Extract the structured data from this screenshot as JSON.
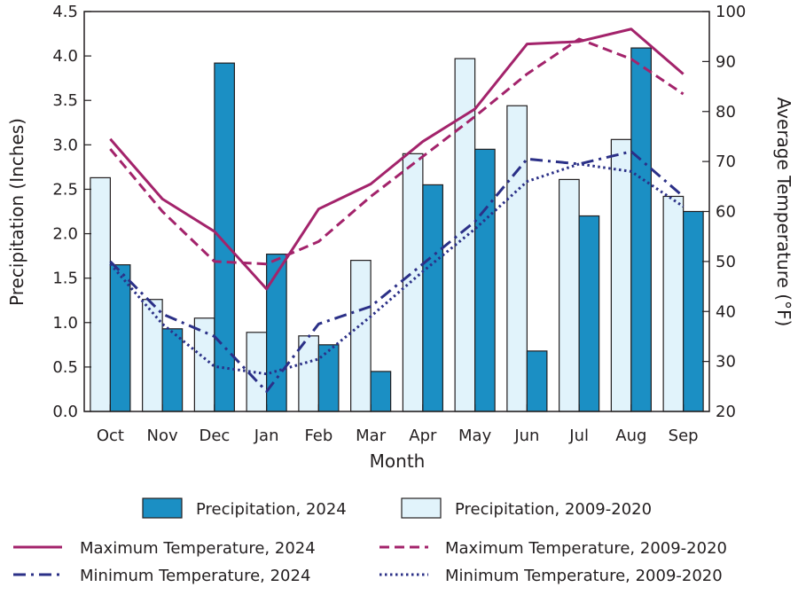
{
  "chart_data": {
    "type": "bar",
    "title": "",
    "xlabel": "Month",
    "ylabel": "Precipitation (Inches)",
    "y2label": "Average Temperature (°F)",
    "ylim": [
      0,
      4.5
    ],
    "y2lim": [
      20,
      100
    ],
    "yticks": [
      "0.0",
      "0.5",
      "1.0",
      "1.5",
      "2.0",
      "2.5",
      "3.0",
      "3.5",
      "4.0",
      "4.5"
    ],
    "y2ticks": [
      "20",
      "30",
      "40",
      "50",
      "60",
      "70",
      "80",
      "90",
      "100"
    ],
    "categories": [
      "Oct",
      "Nov",
      "Dec",
      "Jan",
      "Feb",
      "Mar",
      "Apr",
      "May",
      "Jun",
      "Jul",
      "Aug",
      "Sep"
    ],
    "bar_series": [
      {
        "name": "Precipitation, 2009-2020",
        "color": "#e1f3fb",
        "values": [
          2.63,
          1.26,
          1.05,
          0.89,
          0.85,
          1.7,
          2.9,
          3.97,
          3.44,
          2.61,
          3.06,
          2.42
        ]
      },
      {
        "name": "Precipitation, 2024",
        "color": "#1b8fc4",
        "values": [
          1.65,
          0.93,
          3.92,
          1.77,
          0.75,
          0.45,
          2.55,
          2.95,
          0.68,
          2.2,
          4.09,
          2.25
        ]
      }
    ],
    "line_series": [
      {
        "name": "Maximum Temperature, 2024",
        "color": "#a3236b",
        "dash": "solid",
        "values": [
          74.5,
          62.5,
          56.0,
          44.5,
          60.5,
          65.5,
          74.0,
          80.5,
          93.5,
          94.0,
          96.5,
          87.5
        ]
      },
      {
        "name": "Maximum Temperature, 2009-2020",
        "color": "#a3236b",
        "dash": "dashed",
        "values": [
          72.5,
          60.0,
          50.0,
          49.5,
          54.0,
          63.0,
          71.0,
          79.0,
          87.5,
          94.5,
          90.5,
          83.5
        ]
      },
      {
        "name": "Minimum Temperature, 2024",
        "color": "#2b3087",
        "dash": "dashdot",
        "values": [
          50.0,
          39.5,
          35.0,
          24.0,
          37.5,
          41.0,
          49.5,
          58.0,
          70.5,
          69.5,
          72.0,
          63.0
        ]
      },
      {
        "name": "Minimum Temperature, 2009-2020",
        "color": "#2b3087",
        "dash": "dotted",
        "values": [
          49.5,
          37.5,
          29.0,
          27.5,
          30.5,
          39.0,
          48.0,
          56.5,
          66.0,
          69.5,
          68.0,
          61.0
        ]
      }
    ],
    "legend": {
      "row1": [
        "Precipitation, 2024",
        "Precipitation, 2009-2020"
      ],
      "row2": [
        "Maximum Temperature, 2024",
        "Maximum Temperature, 2009-2020"
      ],
      "row3": [
        "Minimum Temperature, 2024",
        "Minimum Temperature, 2009-2020"
      ],
      "placement": "bottom"
    }
  }
}
